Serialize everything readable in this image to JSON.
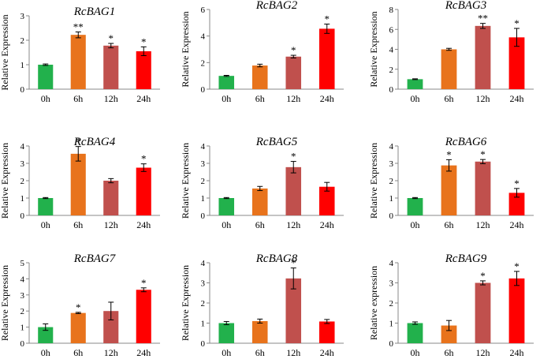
{
  "figure": {
    "colors": {
      "0h": "#22B14C",
      "6h": "#E8731C",
      "12h": "#C0504D",
      "24h": "#FF0000",
      "axis": "#888888",
      "error_bar": "#000000"
    }
  },
  "chart_data": [
    {
      "type": "bar",
      "title": "RcBAG1",
      "ylabel": "Relative Expression",
      "xlabel": "",
      "categories": [
        "0h",
        "6h",
        "12h",
        "24h"
      ],
      "values": [
        1.0,
        2.22,
        1.78,
        1.55
      ],
      "errors": [
        0.03,
        0.12,
        0.09,
        0.18
      ],
      "significance": [
        "",
        "**",
        "*",
        "*"
      ],
      "ylim": [
        0,
        3
      ],
      "yticks": [
        0,
        1,
        2,
        3
      ]
    },
    {
      "type": "bar",
      "title": "RcBAG2",
      "ylabel": "Relative Expression",
      "xlabel": "",
      "categories": [
        "0h",
        "6h",
        "12h",
        "24h"
      ],
      "values": [
        1.0,
        1.78,
        2.45,
        4.55
      ],
      "errors": [
        0.04,
        0.1,
        0.1,
        0.35
      ],
      "significance": [
        "",
        "",
        "*",
        "*"
      ],
      "ylim": [
        0,
        6
      ],
      "yticks": [
        0,
        2,
        4,
        6
      ]
    },
    {
      "type": "bar",
      "title": "RcBAG3",
      "ylabel": "Relative Expression",
      "xlabel": "",
      "categories": [
        "0h",
        "6h",
        "12h",
        "24h"
      ],
      "values": [
        1.0,
        4.0,
        6.35,
        5.2
      ],
      "errors": [
        0.04,
        0.1,
        0.25,
        0.9
      ],
      "significance": [
        "",
        "",
        "**",
        "*"
      ],
      "ylim": [
        0,
        8
      ],
      "yticks": [
        0,
        2,
        4,
        6,
        8
      ]
    },
    {
      "type": "bar",
      "title": "RcBAG4",
      "ylabel": "Relative Expression",
      "xlabel": "",
      "categories": [
        "0h",
        "6h",
        "12h",
        "24h"
      ],
      "values": [
        1.0,
        3.55,
        2.0,
        2.75
      ],
      "errors": [
        0.03,
        0.42,
        0.12,
        0.22
      ],
      "significance": [
        "",
        "*",
        "",
        "*"
      ],
      "ylim": [
        0,
        4
      ],
      "yticks": [
        0,
        1,
        2,
        3,
        4
      ]
    },
    {
      "type": "bar",
      "title": "RcBAG5",
      "ylabel": "Relative Expression",
      "xlabel": "",
      "categories": [
        "0h",
        "6h",
        "12h",
        "24h"
      ],
      "values": [
        1.0,
        1.55,
        2.78,
        1.65
      ],
      "errors": [
        0.03,
        0.12,
        0.33,
        0.25
      ],
      "significance": [
        "",
        "",
        "*",
        ""
      ],
      "ylim": [
        0,
        4
      ],
      "yticks": [
        0,
        1,
        2,
        3,
        4
      ]
    },
    {
      "type": "bar",
      "title": "RcBAG6",
      "ylabel": "Relative Expression",
      "xlabel": "",
      "categories": [
        "0h",
        "6h",
        "12h",
        "24h"
      ],
      "values": [
        1.0,
        2.88,
        3.1,
        1.3
      ],
      "errors": [
        0.03,
        0.33,
        0.12,
        0.25
      ],
      "significance": [
        "",
        "*",
        "*",
        "*"
      ],
      "ylim": [
        0,
        4
      ],
      "yticks": [
        0,
        1,
        2,
        3,
        4
      ]
    },
    {
      "type": "bar",
      "title": "RcBAG7",
      "ylabel": "Relative Expression",
      "xlabel": "",
      "categories": [
        "0h",
        "6h",
        "12h",
        "24h"
      ],
      "values": [
        1.0,
        1.88,
        2.0,
        3.32
      ],
      "errors": [
        0.2,
        0.04,
        0.55,
        0.12
      ],
      "significance": [
        "",
        "*",
        "",
        "*"
      ],
      "ylim": [
        0,
        5
      ],
      "yticks": [
        0,
        1,
        2,
        3,
        4,
        5
      ]
    },
    {
      "type": "bar",
      "title": "RcBAG8",
      "ylabel": "Relative Expression",
      "xlabel": "",
      "categories": [
        "0h",
        "6h",
        "12h",
        "24h"
      ],
      "values": [
        1.0,
        1.1,
        3.22,
        1.08
      ],
      "errors": [
        0.08,
        0.1,
        0.52,
        0.1
      ],
      "significance": [
        "",
        "",
        "*",
        ""
      ],
      "ylim": [
        0,
        4
      ],
      "yticks": [
        0,
        1,
        2,
        3,
        4
      ]
    },
    {
      "type": "bar",
      "title": "RcBAG9",
      "ylabel": "Relative expression",
      "xlabel": "",
      "categories": [
        "0h",
        "6h",
        "12h",
        "24h"
      ],
      "values": [
        1.0,
        0.88,
        3.0,
        3.22
      ],
      "errors": [
        0.06,
        0.25,
        0.1,
        0.35
      ],
      "significance": [
        "",
        "",
        "*",
        "*"
      ],
      "ylim": [
        0,
        4
      ],
      "yticks": [
        0,
        1,
        2,
        3,
        4
      ]
    }
  ]
}
